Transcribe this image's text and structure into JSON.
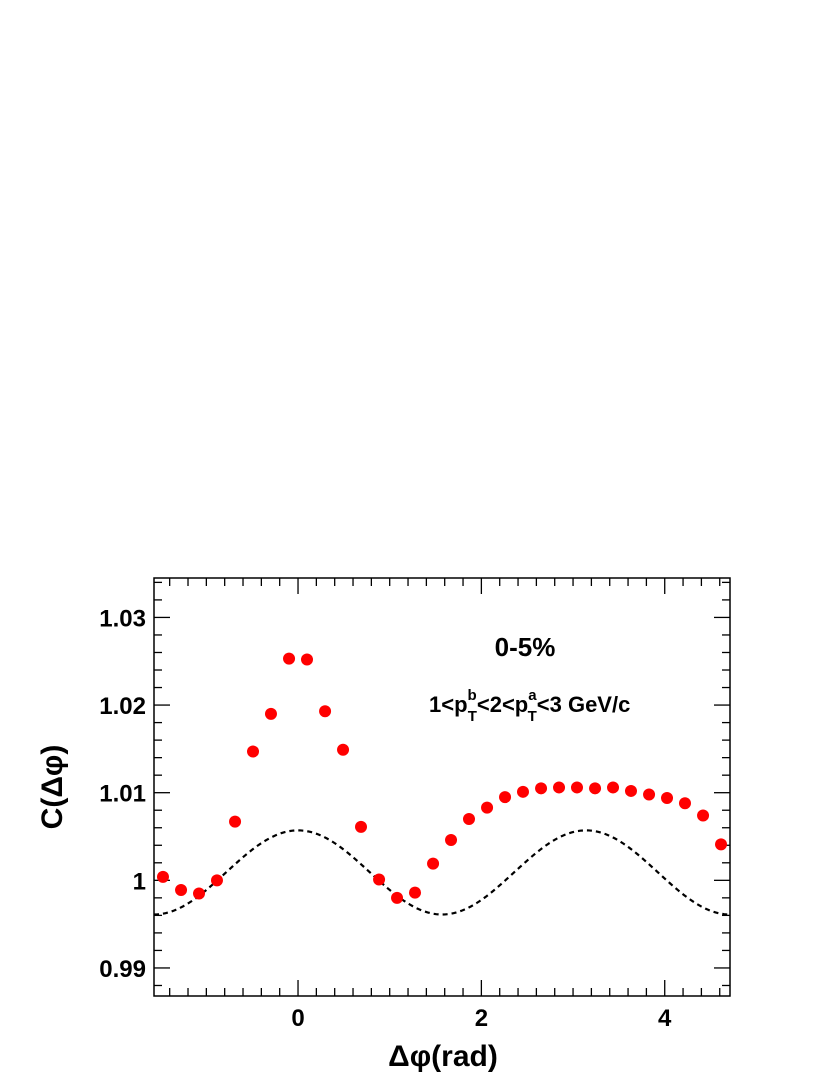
{
  "chart_data": {
    "type": "scatter",
    "xlabel": "Δφ(rad)",
    "ylabel": "C(Δφ)",
    "xlim": [
      -1.571,
      4.712
    ],
    "ylim": [
      0.9868,
      1.0345
    ],
    "x_ticks": [
      0,
      2,
      4
    ],
    "x_tick_labels": [
      "0",
      "2",
      "4"
    ],
    "y_ticks": [
      0.99,
      1.0,
      1.01,
      1.02,
      1.03
    ],
    "y_tick_labels": [
      "0.99",
      "1",
      "1.01",
      "1.02",
      "1.03"
    ],
    "grid": false,
    "annotations": {
      "centrality": "0-5%",
      "pt_selection": "1<p_T^b<2<p_T^a<3 GeV/c",
      "pt_parts": [
        "1<p",
        "b",
        "T",
        "<2<p",
        "a",
        "T",
        "<3 GeV/c"
      ]
    },
    "series": [
      {
        "marker": "circle",
        "color": "#ff0000",
        "x": [
          -1.473,
          -1.276,
          -1.08,
          -0.884,
          -0.687,
          -0.491,
          -0.295,
          -0.098,
          0.098,
          0.295,
          0.491,
          0.687,
          0.884,
          1.08,
          1.276,
          1.473,
          1.669,
          1.865,
          2.062,
          2.258,
          2.454,
          2.651,
          2.847,
          3.043,
          3.24,
          3.436,
          3.632,
          3.829,
          4.025,
          4.221,
          4.418,
          4.614
        ],
        "y": [
          1.0004,
          0.9989,
          0.9985,
          1.0,
          1.0067,
          1.0147,
          1.019,
          1.0253,
          1.0252,
          1.0193,
          1.0149,
          1.0061,
          1.0001,
          0.998,
          0.9986,
          1.0019,
          1.0046,
          1.007,
          1.0083,
          1.0095,
          1.0101,
          1.0105,
          1.0106,
          1.0106,
          1.0105,
          1.0106,
          1.0102,
          1.0098,
          1.0094,
          1.0088,
          1.0074,
          1.0041
        ]
      },
      {
        "style": "dashed",
        "color": "#000000",
        "function": "1.0009 + 0.0048*cos(2*x)"
      }
    ]
  }
}
